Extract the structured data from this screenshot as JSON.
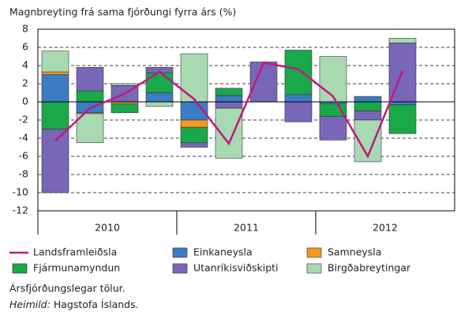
{
  "chart_data": {
    "type": "bar-line",
    "title": "Magnbreyting frá sama fjórðungi fyrra árs (%)",
    "categories": [
      null,
      null,
      null,
      null,
      null,
      null,
      null,
      null,
      null,
      null,
      null,
      null
    ],
    "year_labels": [
      "2010",
      "2011",
      "2012"
    ],
    "series": [
      {
        "name": "Einkaneysla",
        "color": "#3b7cc4",
        "values": [
          3,
          -1.2,
          0,
          1,
          -2,
          0.7,
          0,
          0.8,
          -0.2,
          0.6,
          -0.3,
          null
        ]
      },
      {
        "name": "Samneysla",
        "color": "#f39a1e",
        "values": [
          0.3,
          -0.1,
          -0.2,
          0,
          -0.8,
          0,
          0,
          0,
          0,
          0,
          0,
          null
        ]
      },
      {
        "name": "Fjármunamyndun",
        "color": "#1aa84a",
        "values": [
          -3,
          1.2,
          -1.0,
          2.2,
          -1.7,
          0.8,
          0,
          4.9,
          -1.4,
          -1.0,
          -3.2,
          null
        ]
      },
      {
        "name": "Utanríkisviðskipti",
        "color": "#7866b8",
        "values": [
          -7,
          2.6,
          1.8,
          0.6,
          -0.5,
          -0.7,
          4.4,
          -2.2,
          -2.6,
          -1.0,
          6.5,
          null
        ]
      },
      {
        "name": "Birgðabreytingar",
        "color": "#a9d9b1",
        "values": [
          2.3,
          -3.2,
          0.2,
          -0.5,
          5.3,
          -5.5,
          0,
          0,
          5.0,
          -4.6,
          0.5,
          null
        ]
      }
    ],
    "line": {
      "name": "Landsframleiðsla",
      "color": "#c2187c",
      "values": [
        -4.3,
        -0.7,
        0.9,
        3.3,
        0.3,
        -4.6,
        4.3,
        3.6,
        0.6,
        -6,
        3.4,
        null
      ]
    },
    "ylim": [
      -12,
      8
    ],
    "yticks": [
      -12,
      -10,
      -8,
      -6,
      -4,
      -2,
      0,
      2,
      4,
      6,
      8
    ],
    "grid": true,
    "notes": [
      "Ársfjórðungslegar tölur."
    ],
    "source_label": "Heimild:",
    "source": "Hagstofa Íslands."
  }
}
